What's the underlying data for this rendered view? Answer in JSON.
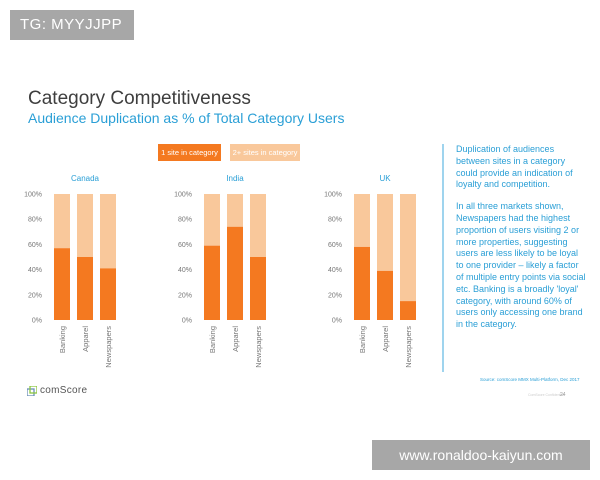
{
  "tags": {
    "top": "TG: MYYJJPP",
    "bottom": "www.ronaldoo-kaiyun.com"
  },
  "title": "Category Competitiveness",
  "subtitle": "Audience Duplication as % of Total Category Users",
  "legend": {
    "one": "1 site in category",
    "two": "2+ sites in category"
  },
  "colors": {
    "one_site": "#f47920",
    "two_plus": "#f9c89b",
    "accent": "#2a9fd6"
  },
  "panel": {
    "p1": "Duplication of audiences between sites in a category could provide an indication of loyalty and competition.",
    "p2": "In all three markets shown, Newspapers had the highest proportion of users visiting 2 or more properties, suggesting users are less likely to be loyal to one provider – likely a factor of multiple entry points via social etc. Banking is a broadly 'loyal' category, with around 60% of users only accessing one brand in the category."
  },
  "source": "Source: comScore MMX Multi-Platform, Dec 2017",
  "page_label": "ComScore Confidential",
  "page_number": "24",
  "logo": "comScore",
  "chart_data": [
    {
      "type": "bar",
      "stacked": true,
      "title": "Canada",
      "categories": [
        "Banking",
        "Apparel",
        "Newspapers"
      ],
      "ylim": [
        0,
        100
      ],
      "yticks": [
        "0%",
        "20%",
        "40%",
        "60%",
        "80%",
        "100%"
      ],
      "series": [
        {
          "name": "1 site in category",
          "values": [
            57,
            50,
            41
          ]
        },
        {
          "name": "2+ sites in category",
          "values": [
            43,
            50,
            59
          ]
        }
      ]
    },
    {
      "type": "bar",
      "stacked": true,
      "title": "India",
      "categories": [
        "Banking",
        "Apparel",
        "Newspapers"
      ],
      "ylim": [
        0,
        100
      ],
      "yticks": [
        "0%",
        "20%",
        "40%",
        "60%",
        "80%",
        "100%"
      ],
      "series": [
        {
          "name": "1 site in category",
          "values": [
            59,
            74,
            50
          ]
        },
        {
          "name": "2+ sites in category",
          "values": [
            41,
            26,
            50
          ]
        }
      ]
    },
    {
      "type": "bar",
      "stacked": true,
      "title": "UK",
      "categories": [
        "Banking",
        "Apparel",
        "Newspapers"
      ],
      "ylim": [
        0,
        100
      ],
      "yticks": [
        "0%",
        "20%",
        "40%",
        "60%",
        "80%",
        "100%"
      ],
      "series": [
        {
          "name": "1 site in category",
          "values": [
            58,
            39,
            15
          ]
        },
        {
          "name": "2+ sites in category",
          "values": [
            42,
            61,
            85
          ]
        }
      ]
    }
  ]
}
